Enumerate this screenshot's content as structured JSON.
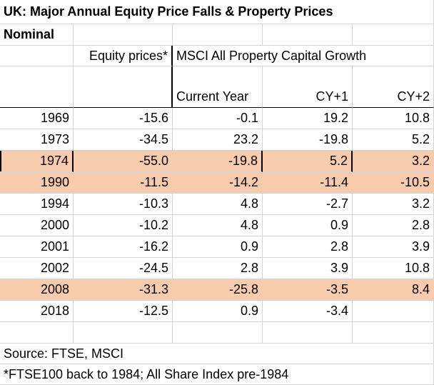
{
  "title": "UK: Major Annual Equity Price Falls & Property Prices",
  "subtitle": "Nominal",
  "headers": {
    "equity": "Equity prices*",
    "property_group": "MSCI All Property Capital Growth",
    "current_year": "Current Year",
    "cy1": "CY+1",
    "cy2": "CY+2"
  },
  "rows": [
    {
      "year": "1969",
      "equity": "-15.6",
      "cy": "-0.1",
      "cy1": "19.2",
      "cy2": "10.8",
      "highlight": false
    },
    {
      "year": "1973",
      "equity": "-34.5",
      "cy": "23.2",
      "cy1": "-19.8",
      "cy2": "5.2",
      "highlight": false
    },
    {
      "year": "1974",
      "equity": "-55.0",
      "cy": "-19.8",
      "cy1": "5.2",
      "cy2": "3.2",
      "highlight": true
    },
    {
      "year": "1990",
      "equity": "-11.5",
      "cy": "-14.2",
      "cy1": "-11.4",
      "cy2": "-10.5",
      "highlight": true
    },
    {
      "year": "1994",
      "equity": "-10.3",
      "cy": "4.8",
      "cy1": "-2.7",
      "cy2": "3.2",
      "highlight": false
    },
    {
      "year": "2000",
      "equity": "-10.2",
      "cy": "4.8",
      "cy1": "0.9",
      "cy2": "2.8",
      "highlight": false
    },
    {
      "year": "2001",
      "equity": "-16.2",
      "cy": "0.9",
      "cy1": "2.8",
      "cy2": "3.9",
      "highlight": false
    },
    {
      "year": "2002",
      "equity": "-24.5",
      "cy": "2.8",
      "cy1": "3.9",
      "cy2": "10.8",
      "highlight": false
    },
    {
      "year": "2008",
      "equity": "-31.3",
      "cy": "-25.8",
      "cy1": "-3.5",
      "cy2": "8.4",
      "highlight": true
    },
    {
      "year": "2018",
      "equity": "-12.5",
      "cy": "0.9",
      "cy1": "-3.4",
      "cy2": "",
      "highlight": false
    }
  ],
  "source": "Source: FTSE, MSCI",
  "footnote": "*FTSE100 back to 1984; All Share Index pre-1984",
  "colors": {
    "highlight": "#f8cbad",
    "gridline": "#d4d4d4",
    "border": "#000000"
  }
}
